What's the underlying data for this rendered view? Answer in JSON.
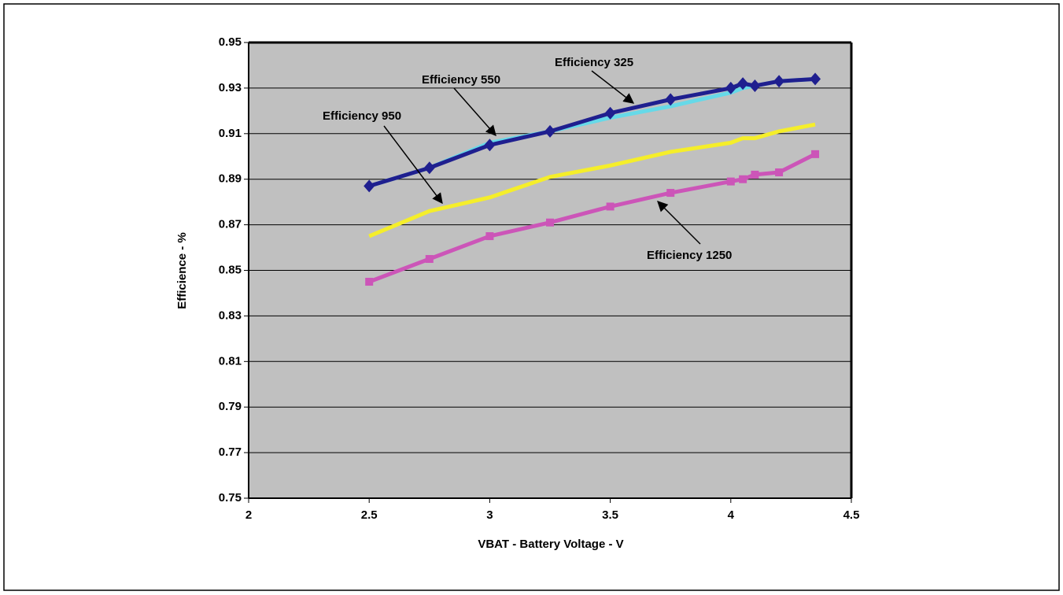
{
  "chart_data": {
    "type": "line",
    "xlabel": "VBAT - Battery Voltage - V",
    "ylabel": "Efficience - %",
    "x": [
      2.5,
      2.75,
      3,
      3.25,
      3.5,
      3.75,
      4,
      4.05,
      4.1,
      4.2,
      4.35
    ],
    "series": [
      {
        "name": "Efficiency 550",
        "color": "#66d9e8",
        "marker": "none",
        "values": [
          0.887,
          0.895,
          0.906,
          0.911,
          0.917,
          0.922,
          0.928,
          0.93,
          0.931,
          0.933,
          0.934
        ]
      },
      {
        "name": "Efficiency 325",
        "color": "#1f1f8f",
        "marker": "diamond",
        "values": [
          0.887,
          0.895,
          0.905,
          0.911,
          0.919,
          0.925,
          0.93,
          0.932,
          0.931,
          0.933,
          0.934
        ]
      },
      {
        "name": "Efficiency 950",
        "color": "#f5ee2a",
        "marker": "none",
        "values": [
          0.865,
          0.876,
          0.882,
          0.891,
          0.896,
          0.902,
          0.906,
          0.908,
          0.908,
          0.911,
          0.914
        ]
      },
      {
        "name": "Efficiency 1250",
        "color": "#cc55b8",
        "marker": "square",
        "values": [
          0.845,
          0.855,
          0.865,
          0.871,
          0.878,
          0.884,
          0.889,
          0.89,
          0.892,
          0.893,
          0.901
        ]
      }
    ],
    "xlim": [
      2,
      4.5
    ],
    "xticks": [
      2,
      2.5,
      3,
      3.5,
      4,
      4.5
    ],
    "ylim": [
      0.75,
      0.95
    ],
    "yticks": [
      0.75,
      0.77,
      0.79,
      0.81,
      0.83,
      0.85,
      0.87,
      0.89,
      0.91,
      0.93,
      0.95
    ],
    "grid": true,
    "background": "#c0c0c0"
  }
}
